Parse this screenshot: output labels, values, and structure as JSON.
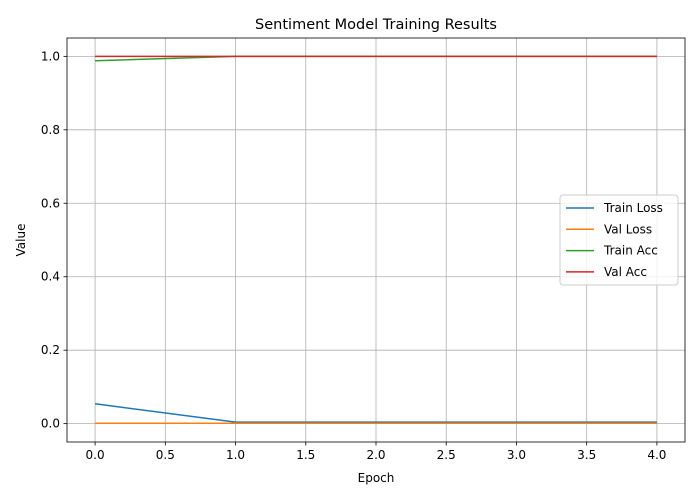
{
  "chart_data": {
    "type": "line",
    "title": "Sentiment Model Training Results",
    "xlabel": "Epoch",
    "ylabel": "Value",
    "x": [
      0,
      1,
      2,
      3,
      4
    ],
    "xlim": [
      -0.2,
      4.2
    ],
    "ylim": [
      -0.05,
      1.05
    ],
    "xticks": [
      0.0,
      0.5,
      1.0,
      1.5,
      2.0,
      2.5,
      3.0,
      3.5,
      4.0
    ],
    "xtick_labels": [
      "0.0",
      "0.5",
      "1.0",
      "1.5",
      "2.0",
      "2.5",
      "3.0",
      "3.5",
      "4.0"
    ],
    "yticks": [
      0.0,
      0.2,
      0.4,
      0.6,
      0.8,
      1.0
    ],
    "ytick_labels": [
      "0.0",
      "0.2",
      "0.4",
      "0.6",
      "0.8",
      "1.0"
    ],
    "grid": true,
    "legend_position": "center-right",
    "series": [
      {
        "name": "Train Loss",
        "color": "#1f77b4",
        "values": [
          0.054,
          0.004,
          0.004,
          0.004,
          0.004
        ]
      },
      {
        "name": "Val Loss",
        "color": "#ff7f0e",
        "values": [
          0.001,
          0.001,
          0.001,
          0.001,
          0.001
        ]
      },
      {
        "name": "Train Acc",
        "color": "#2ca02c",
        "values": [
          0.988,
          1.0,
          1.0,
          1.0,
          1.0
        ]
      },
      {
        "name": "Val Acc",
        "color": "#d62728",
        "values": [
          1.0,
          1.0,
          1.0,
          1.0,
          1.0
        ]
      }
    ]
  }
}
